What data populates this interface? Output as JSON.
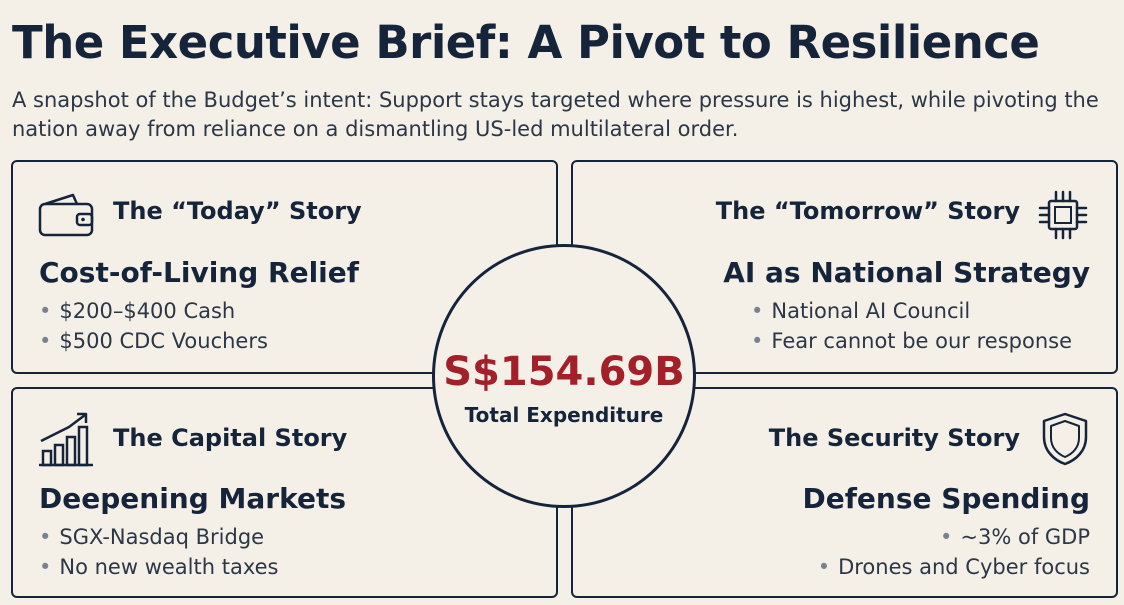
{
  "header": {
    "title": "The Executive Brief: A Pivot to Resilience",
    "subtitle": "A snapshot of the Budget’s intent: Support stays targeted where pressure is highest, while pivoting the nation away from reliance on a dismantling US-led multilateral order."
  },
  "center": {
    "value": "S$154.69B",
    "label": "Total Expenditure"
  },
  "cards": {
    "today": {
      "icon": "wallet-icon",
      "story": "The “Today” Story",
      "heading": "Cost-of-Living Relief",
      "bullets": [
        "$200–$400 Cash",
        "$500 CDC Vouchers"
      ]
    },
    "tomorrow": {
      "icon": "chip-icon",
      "story": "The “Tomorrow” Story",
      "heading": "AI as National Strategy",
      "bullets": [
        "National AI Council",
        "Fear cannot be our response"
      ]
    },
    "capital": {
      "icon": "growth-chart-icon",
      "story": "The Capital Story",
      "heading": "Deepening Markets",
      "bullets": [
        "SGX-Nasdaq Bridge",
        "No new wealth taxes"
      ]
    },
    "security": {
      "icon": "shield-icon",
      "story": "The Security Story",
      "heading": "Defense Spending",
      "bullets": [
        "~3% of GDP",
        "Drones and Cyber focus"
      ]
    }
  },
  "colors": {
    "navy": "#16243a",
    "accent_red": "#a3202a",
    "background": "#f4f0e8"
  }
}
